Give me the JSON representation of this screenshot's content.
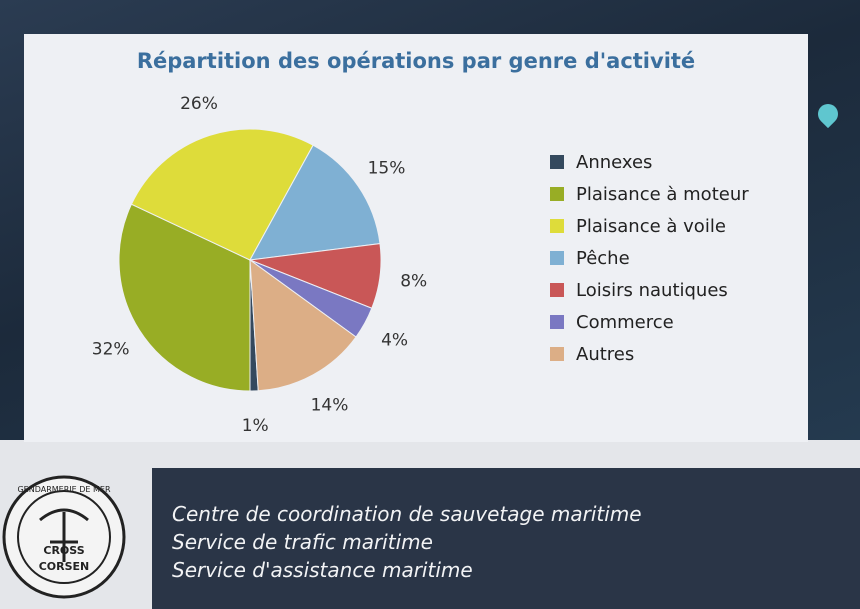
{
  "chart_data": {
    "type": "pie",
    "title": "Répartition des opérations par genre d'activité",
    "slices": [
      {
        "label": "Annexes",
        "value": 1,
        "display": "1%",
        "color": "#34495e"
      },
      {
        "label": "Plaisance à moteur",
        "value": 32,
        "display": "32%",
        "color": "#98ad25"
      },
      {
        "label": "Plaisance à voile",
        "value": 26,
        "display": "26%",
        "color": "#dedc3a"
      },
      {
        "label": "Pêche",
        "value": 15,
        "display": "15%",
        "color": "#7fb0d3"
      },
      {
        "label": "Loisirs nautiques",
        "value": 8,
        "display": "8%",
        "color": "#c95757"
      },
      {
        "label": "Commerce",
        "value": 4,
        "display": "4%",
        "color": "#7a78c2"
      },
      {
        "label": "Autres",
        "value": 14,
        "display": "14%",
        "color": "#dcae86"
      }
    ],
    "legend_position": "right"
  },
  "footer": {
    "lines": [
      "Centre de coordination de sauvetage maritime",
      "Service de trafic maritime",
      "Service d'assistance maritime"
    ]
  },
  "logo": {
    "text_top": "GENDARMERIE DE MER",
    "text_mid": "CROSS",
    "text_bottom": "CORSEN"
  }
}
